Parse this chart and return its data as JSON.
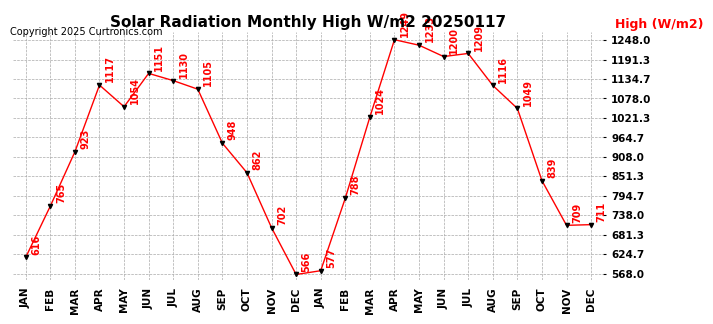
{
  "title": "Solar Radiation Monthly High W/m2 20250117",
  "copyright": "Copyright 2025 Curtronics.com",
  "legend_label": "High (W/m2)",
  "x_labels": [
    "JAN",
    "FEB",
    "MAR",
    "APR",
    "MAY",
    "JUN",
    "JUL",
    "AUG",
    "SEP",
    "OCT",
    "NOV",
    "DEC",
    "JAN",
    "FEB",
    "MAR",
    "APR",
    "MAY",
    "JUN",
    "JUL",
    "AUG",
    "SEP",
    "OCT",
    "NOV",
    "DEC"
  ],
  "values": [
    616,
    765,
    923,
    1117,
    1054,
    1151,
    1130,
    1105,
    948,
    862,
    702,
    566,
    577,
    788,
    1024,
    1249,
    1233,
    1200,
    1209,
    1116,
    1049,
    839,
    709,
    711
  ],
  "y_ticks": [
    568.0,
    624.7,
    681.3,
    738.0,
    794.7,
    851.3,
    908.0,
    964.7,
    1021.3,
    1078.0,
    1134.7,
    1191.3,
    1248.0
  ],
  "ylim": [
    550.0,
    1270.0
  ],
  "line_color": "red",
  "marker_color": "black",
  "label_color": "red",
  "bg_color": "#ffffff",
  "grid_color": "#aaaaaa",
  "title_fontsize": 11,
  "tick_fontsize": 7.5,
  "label_fontsize": 7,
  "copyright_fontsize": 7,
  "legend_fontsize": 9
}
